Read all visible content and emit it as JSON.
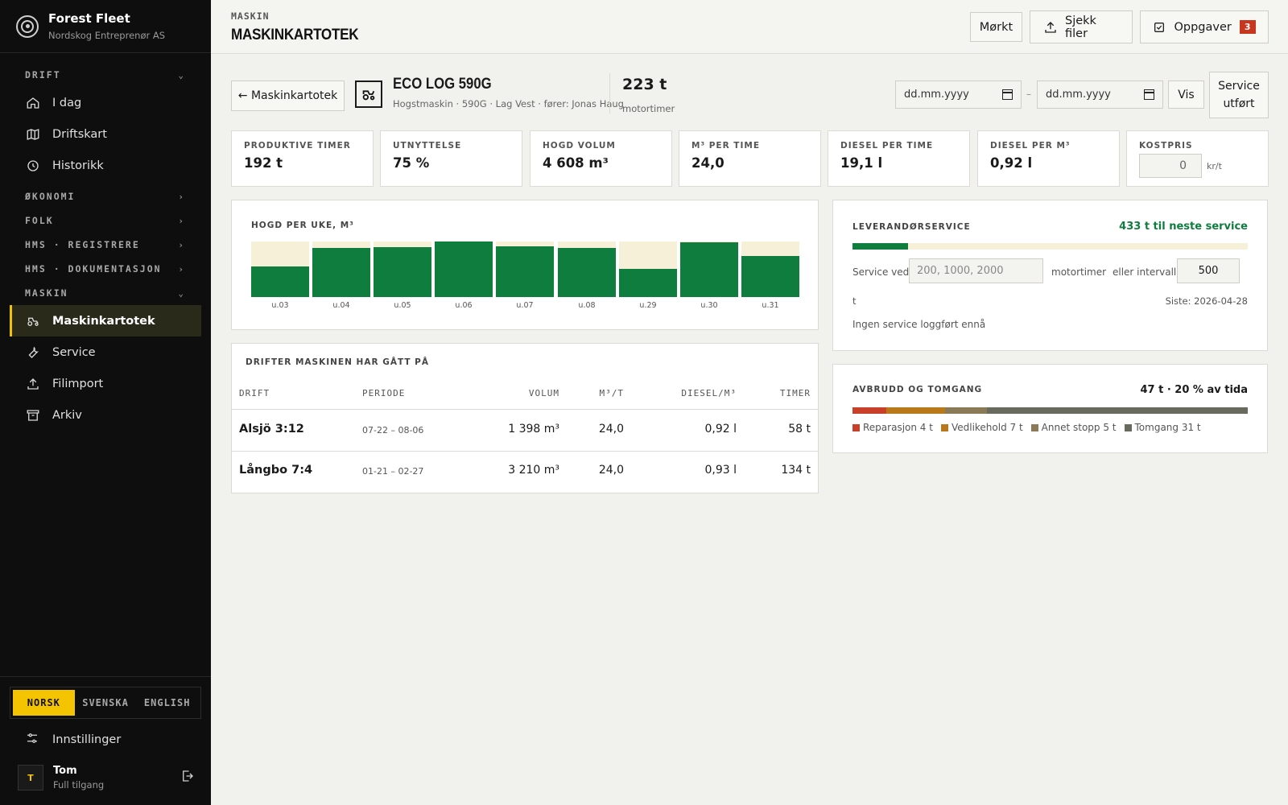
{
  "brand": {
    "name": "Forest Fleet",
    "company": "Nordskog Entreprenør AS"
  },
  "nav": {
    "drift": {
      "label": "DRIFT",
      "items": [
        "I dag",
        "Driftskart",
        "Historikk"
      ]
    },
    "okonomi": "ØKONOMI",
    "folk": "FOLK",
    "hms_reg": "HMS · REGISTRERE",
    "hms_dok": "HMS · DOKUMENTASJON",
    "maskin": {
      "label": "MASKIN",
      "items": [
        "Maskinkartotek",
        "Service",
        "Filimport",
        "Arkiv"
      ]
    }
  },
  "languages": [
    "NORSK",
    "SVENSKA",
    "ENGLISH"
  ],
  "settings_label": "Innstillinger",
  "user": {
    "initial": "T",
    "name": "Tom",
    "role": "Full tilgang"
  },
  "header": {
    "crumb": "MASKIN",
    "title": "MASKINKARTOTEK",
    "dark_label": "Mørkt",
    "files_label": "Sjekk filer",
    "tasks_label": "Oppgaver",
    "tasks_count": "3"
  },
  "machine": {
    "back_label": "← Maskinkartotek",
    "name": "ECO LOG 590G",
    "sub": "Hogstmaskin · 590G · Lag Vest · fører: Jonas Haug",
    "hours": "223 t",
    "hours_label": "motortimer"
  },
  "filters": {
    "date_placeholder": "dd.mm.yyyy",
    "dash": "–",
    "show_label": "Vis",
    "service_done_1": "Service",
    "service_done_2": "utført"
  },
  "kpis": [
    {
      "label": "PRODUKTIVE TIMER",
      "value": "192 t"
    },
    {
      "label": "UTNYTTELSE",
      "value": "75 %"
    },
    {
      "label": "HOGD VOLUM",
      "value": "4 608 m³"
    },
    {
      "label": "M³ PER TIME",
      "value": "24,0"
    },
    {
      "label": "DIESEL PER TIME",
      "value": "19,1 l"
    },
    {
      "label": "DIESEL PER M³",
      "value": "0,92 l"
    },
    {
      "label": "KOSTPRIS",
      "value": "0",
      "unit": "kr/t"
    }
  ],
  "chart_data": {
    "type": "bar",
    "title": "HOGD PER UKE, M³",
    "categories": [
      "u.03",
      "u.04",
      "u.05",
      "u.06",
      "u.07",
      "u.08",
      "u.29",
      "u.30",
      "u.31"
    ],
    "values": [
      0.55,
      0.88,
      0.9,
      1.0,
      0.92,
      0.88,
      0.5,
      0.98,
      0.74
    ],
    "ylim": [
      0,
      1
    ],
    "colors": {
      "fill": "#0f7d3e",
      "track": "#f6f0d8"
    }
  },
  "drifts": {
    "title": "DRIFTER MASKINEN HAR GÅTT PÅ",
    "columns": [
      "DRIFT",
      "PERIODE",
      "VOLUM",
      "M³/T",
      "DIESEL/M³",
      "TIMER"
    ],
    "rows": [
      {
        "name": "Alsjö 3:12",
        "period": "07-22 – 08-06",
        "volume": "1 398 m³",
        "m3t": "24,0",
        "diesel": "0,92 l",
        "hours": "58 t"
      },
      {
        "name": "Långbo 7:4",
        "period": "01-21 – 02-27",
        "volume": "3 210 m³",
        "m3t": "24,0",
        "diesel": "0,93 l",
        "hours": "134 t"
      }
    ]
  },
  "service": {
    "title": "LEVERANDØRSERVICE",
    "next": "433 t til neste service",
    "progress": 0.14,
    "at_label": "Service ved:",
    "at_placeholder": "200, 1000, 2000",
    "at_unit": "motortimer",
    "interval_label": "eller intervall:",
    "interval_value": "500",
    "unit_t": "t",
    "last": "Siste: 2026-04-28",
    "empty": "Ingen service loggført ennå"
  },
  "idle": {
    "title": "AVBRUDD OG TOMGANG",
    "summary": "47 t · 20 % av tida",
    "segments": [
      {
        "label": "Reparasjon 4 t",
        "hours": 4,
        "color": "#c8402a"
      },
      {
        "label": "Vedlikehold 7 t",
        "hours": 7,
        "color": "#b9791a"
      },
      {
        "label": "Annet stopp 5 t",
        "hours": 5,
        "color": "#8a7a58"
      },
      {
        "label": "Tomgang 31 t",
        "hours": 31,
        "color": "#686a5e"
      }
    ]
  }
}
